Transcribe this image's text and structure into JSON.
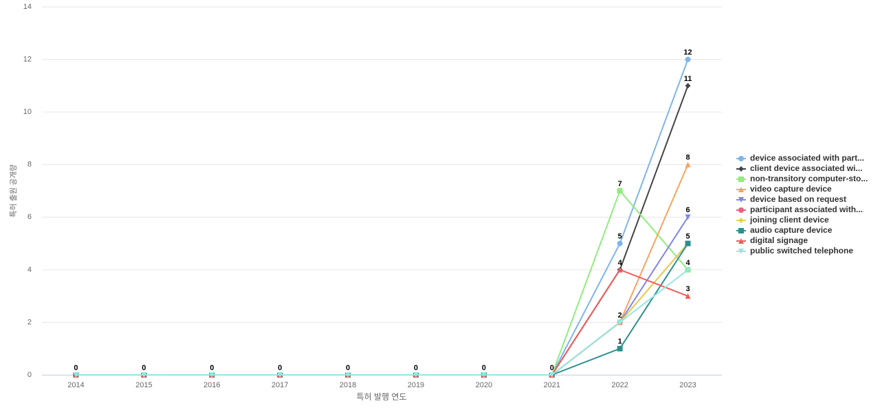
{
  "chart_data": {
    "type": "line",
    "x_label": "특허 발행 연도",
    "y_label": "특허 출원 공개량",
    "categories": [
      "2014",
      "2015",
      "2016",
      "2017",
      "2018",
      "2019",
      "2020",
      "2021",
      "2022",
      "2023"
    ],
    "ylim": [
      0,
      14
    ],
    "yticks": [
      0,
      2,
      4,
      6,
      8,
      10,
      12,
      14
    ],
    "grid": true,
    "legend": "right",
    "series": [
      {
        "name": "device associated with part...",
        "color": "#7cb5ec",
        "marker": "circle",
        "values": [
          0,
          0,
          0,
          0,
          0,
          0,
          0,
          0,
          5,
          12
        ]
      },
      {
        "name": "client device associated wi...",
        "color": "#434348",
        "marker": "diamond",
        "values": [
          0,
          0,
          0,
          0,
          0,
          0,
          0,
          0,
          4,
          11
        ]
      },
      {
        "name": "non-transitory computer-sto...",
        "color": "#90ed7d",
        "marker": "square",
        "values": [
          0,
          0,
          0,
          0,
          0,
          0,
          0,
          0,
          7,
          4
        ]
      },
      {
        "name": "video capture device",
        "color": "#f7a35c",
        "marker": "triangle",
        "values": [
          0,
          0,
          0,
          0,
          0,
          0,
          0,
          0,
          2,
          8
        ]
      },
      {
        "name": "device based on request",
        "color": "#8085e9",
        "marker": "triangle-down",
        "values": [
          0,
          0,
          0,
          0,
          0,
          0,
          0,
          0,
          2,
          6
        ]
      },
      {
        "name": "participant associated with...",
        "color": "#f15c80",
        "marker": "circle",
        "values": [
          0,
          0,
          0,
          0,
          0,
          0,
          0,
          0,
          2,
          5
        ]
      },
      {
        "name": "joining client device",
        "color": "#e4d354",
        "marker": "diamond",
        "values": [
          0,
          0,
          0,
          0,
          0,
          0,
          0,
          0,
          2,
          5
        ]
      },
      {
        "name": "audio capture device",
        "color": "#2b908f",
        "marker": "square",
        "values": [
          0,
          0,
          0,
          0,
          0,
          0,
          0,
          0,
          1,
          5
        ]
      },
      {
        "name": "digital signage",
        "color": "#f45b5b",
        "marker": "triangle",
        "values": [
          0,
          0,
          0,
          0,
          0,
          0,
          0,
          0,
          4,
          3
        ]
      },
      {
        "name": "public switched telephone",
        "color": "#91e8e1",
        "marker": "triangle-down",
        "values": [
          0,
          0,
          0,
          0,
          0,
          0,
          0,
          0,
          2,
          4
        ]
      }
    ]
  }
}
